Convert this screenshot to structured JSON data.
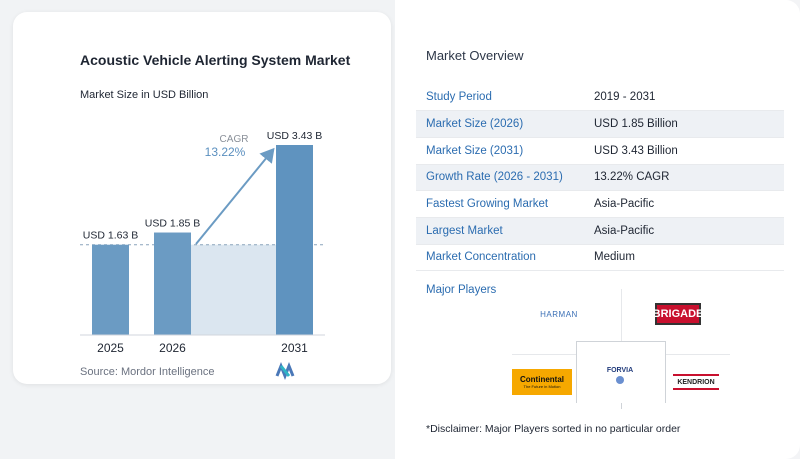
{
  "chart_data": {
    "type": "bar",
    "title": "Acoustic Vehicle Alerting System Market",
    "subtitle": "Market Size in USD Billion",
    "categories": [
      "2025",
      "2026",
      "2031"
    ],
    "values": [
      1.63,
      1.85,
      3.43
    ],
    "value_labels": [
      "USD 1.63 B",
      "USD 1.85 B",
      "USD 3.43 B"
    ],
    "ylim": [
      0,
      3.6
    ],
    "annotation": {
      "label": "CAGR",
      "value": "13.22%"
    },
    "grid": false,
    "colors": {
      "bar": "#6b9bc3",
      "bar_last": "#5f93bf",
      "area": "#dbe6f0",
      "arrow": "#6b9bc3",
      "cagr_text": "#5a8fbf"
    }
  },
  "source": "Source:  Mordor Intelligence",
  "overview": {
    "title": "Market Overview",
    "rows": [
      {
        "key": "Study Period",
        "value": "2019 - 2031"
      },
      {
        "key": "Market Size (2026)",
        "value": "USD 1.85 Billion"
      },
      {
        "key": "Market Size (2031)",
        "value": "USD 3.43 Billion"
      },
      {
        "key": "Growth Rate (2026 - 2031)",
        "value": "13.22% CAGR"
      },
      {
        "key": "Fastest Growing Market",
        "value": "Asia-Pacific"
      },
      {
        "key": "Largest Market",
        "value": "Asia-Pacific"
      },
      {
        "key": "Market Concentration",
        "value": "Medium"
      }
    ]
  },
  "players": {
    "title": "Major Players",
    "logos": {
      "harman": "HARMAN",
      "brigade": "BRIGADE",
      "forvia": "FORVIA",
      "continental": "Continental",
      "continental_tag": "The Future in Motion",
      "kendrion": "KENDRION"
    }
  },
  "disclaimer": "*Disclaimer: Major Players sorted in no particular order"
}
